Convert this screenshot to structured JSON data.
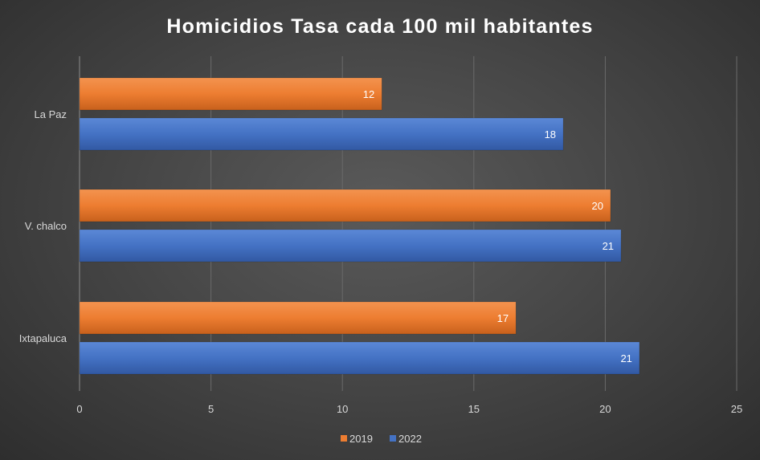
{
  "chart_data": {
    "type": "bar",
    "orientation": "horizontal",
    "title": "Homicidios  Tasa cada 100 mil habitantes",
    "categories": [
      "La Paz",
      "V. chalco",
      "Ixtapaluca"
    ],
    "series": [
      {
        "name": "2019",
        "color": "#ED7D31",
        "values": [
          11.5,
          20.2,
          16.6
        ],
        "labels": [
          "12",
          "20",
          "17"
        ]
      },
      {
        "name": "2022",
        "color": "#4472C4",
        "values": [
          18.4,
          20.6,
          21.3
        ],
        "labels": [
          "18",
          "21",
          "21"
        ]
      }
    ],
    "xlim": [
      0,
      25
    ],
    "xticks": [
      0,
      5,
      10,
      15,
      20,
      25
    ],
    "grid": true,
    "legend": "bottom",
    "xlabel": "",
    "ylabel": ""
  }
}
